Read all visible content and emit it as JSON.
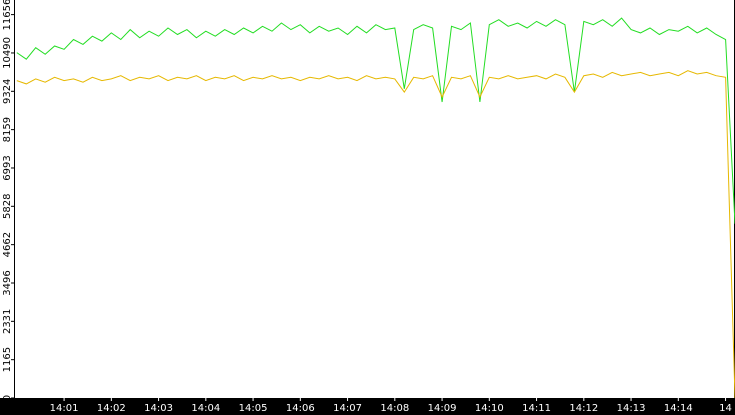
{
  "chart_data": {
    "type": "line",
    "x": [
      840,
      840.2,
      840.4,
      840.6,
      840.8,
      841,
      841.2,
      841.4,
      841.6,
      841.8,
      842,
      842.2,
      842.4,
      842.6,
      842.8,
      843,
      843.2,
      843.4,
      843.6,
      843.8,
      844,
      844.2,
      844.4,
      844.6,
      844.8,
      845,
      845.2,
      845.4,
      845.6,
      845.8,
      846,
      846.2,
      846.4,
      846.6,
      846.8,
      847,
      847.2,
      847.4,
      847.6,
      847.8,
      848,
      848.2,
      848.4,
      848.6,
      848.8,
      849,
      849.2,
      849.4,
      849.6,
      849.8,
      850,
      850.2,
      850.4,
      850.6,
      850.8,
      851,
      851.2,
      851.4,
      851.6,
      851.8,
      852,
      852.2,
      852.4,
      852.6,
      852.8,
      853,
      853.2,
      853.4,
      853.6,
      853.8,
      854,
      854.2,
      854.4,
      854.6,
      854.8,
      855,
      855.2
    ],
    "series": [
      {
        "color": "#22dd22",
        "values": [
          10500,
          10300,
          10650,
          10450,
          10700,
          10600,
          10900,
          10750,
          11000,
          10850,
          11100,
          10900,
          11200,
          10950,
          11150,
          11000,
          11250,
          11050,
          11200,
          10950,
          11150,
          11000,
          11200,
          11050,
          11250,
          11100,
          11300,
          11150,
          11400,
          11200,
          11350,
          11100,
          11300,
          11150,
          11250,
          11050,
          11300,
          11100,
          11350,
          11200,
          11250,
          9400,
          11200,
          11350,
          11250,
          9000,
          11300,
          11200,
          11400,
          9000,
          11350,
          11500,
          11300,
          11400,
          11250,
          11450,
          11300,
          11500,
          11350,
          9300,
          11450,
          11350,
          11500,
          11300,
          11550,
          11200,
          11100,
          11250,
          11050,
          11200,
          11150,
          11300,
          11100,
          11250,
          11050,
          10900,
          5300
        ]
      },
      {
        "color": "#e6b800",
        "values": [
          9650,
          9550,
          9700,
          9600,
          9750,
          9650,
          9700,
          9600,
          9750,
          9650,
          9700,
          9800,
          9650,
          9750,
          9700,
          9800,
          9650,
          9750,
          9700,
          9800,
          9650,
          9750,
          9700,
          9800,
          9650,
          9750,
          9700,
          9800,
          9700,
          9750,
          9650,
          9750,
          9700,
          9800,
          9700,
          9750,
          9650,
          9800,
          9700,
          9750,
          9700,
          9300,
          9750,
          9700,
          9800,
          9150,
          9750,
          9700,
          9800,
          9150,
          9750,
          9700,
          9800,
          9700,
          9750,
          9800,
          9700,
          9850,
          9750,
          9300,
          9800,
          9850,
          9750,
          9900,
          9800,
          9850,
          9900,
          9800,
          9850,
          9900,
          9800,
          9950,
          9850,
          9900,
          9800,
          9750,
          0
        ]
      }
    ],
    "xlim": [
      839.94,
      855.2
    ],
    "xticks": [
      {
        "value": 841,
        "label": "14:01"
      },
      {
        "value": 842,
        "label": "14:02"
      },
      {
        "value": 843,
        "label": "14:03"
      },
      {
        "value": 844,
        "label": "14:04"
      },
      {
        "value": 845,
        "label": "14:05"
      },
      {
        "value": 846,
        "label": "14:06"
      },
      {
        "value": 847,
        "label": "14:07"
      },
      {
        "value": 848,
        "label": "14:08"
      },
      {
        "value": 849,
        "label": "14:09"
      },
      {
        "value": 850,
        "label": "14:10"
      },
      {
        "value": 851,
        "label": "14:11"
      },
      {
        "value": 852,
        "label": "14:12"
      },
      {
        "value": 853,
        "label": "14:13"
      },
      {
        "value": 854,
        "label": "14:14"
      },
      {
        "value": 855,
        "label": "14"
      }
    ],
    "ylim": [
      0,
      12100
    ],
    "yticks": [
      0,
      1165,
      2331,
      3496,
      4662,
      5828,
      6993,
      8159,
      9324,
      10490,
      11656
    ]
  }
}
